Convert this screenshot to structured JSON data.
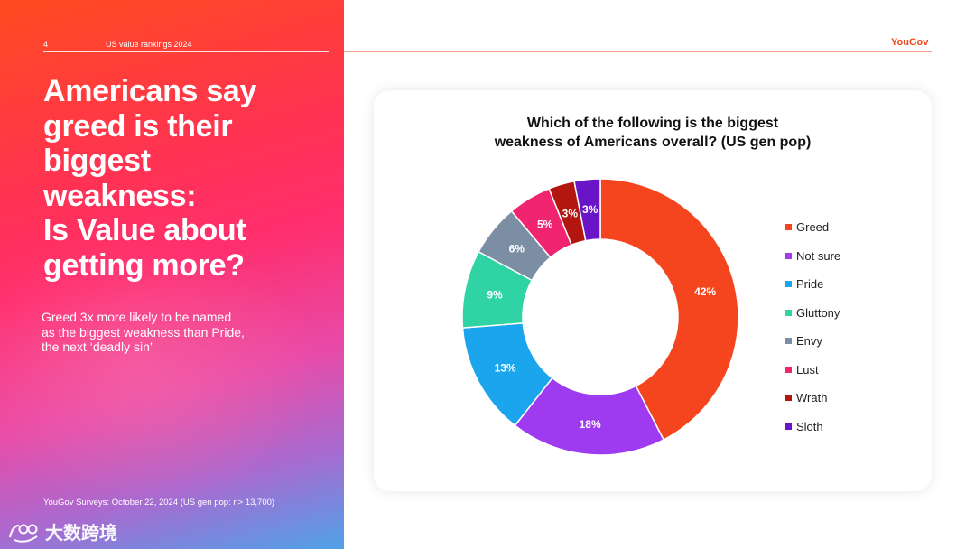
{
  "header": {
    "page_number": "4",
    "section": "US value rankings 2024",
    "brand": "YouGov"
  },
  "left_panel": {
    "headline": "Americans say\ngreed is their\nbiggest\nweakness:\nIs Value about\ngetting more?",
    "subtext": "Greed 3x more likely to be named\nas the biggest weakness than Pride,\nthe next ‘deadly sin’",
    "source": "YouGov Surveys: October 22, 2024 (US gen pop: n> 13,700)"
  },
  "watermark": {
    "text": "大数跨境"
  },
  "colors": {
    "brand": "#f5451e"
  },
  "chart_data": {
    "type": "pie",
    "title": "Which of the following is the biggest\nweakness of Americans overall? (US gen pop)",
    "donut": true,
    "legend_position": "right",
    "slices": [
      {
        "label": "Greed",
        "value": 42,
        "display": "42%",
        "color": "#f5451e"
      },
      {
        "label": "Not sure",
        "value": 18,
        "display": "18%",
        "color": "#9e3af0"
      },
      {
        "label": "Pride",
        "value": 13,
        "display": "13%",
        "color": "#1aa5ec"
      },
      {
        "label": "Gluttony",
        "value": 9,
        "display": "9%",
        "color": "#2fd3a4"
      },
      {
        "label": "Envy",
        "value": 6,
        "display": "6%",
        "color": "#7b8ea3"
      },
      {
        "label": "Lust",
        "value": 5,
        "display": "5%",
        "color": "#f0246f"
      },
      {
        "label": "Wrath",
        "value": 3,
        "display": "3%",
        "color": "#b3150f"
      },
      {
        "label": "Sloth",
        "value": 3,
        "display": "3%",
        "color": "#6a14c8"
      }
    ]
  }
}
